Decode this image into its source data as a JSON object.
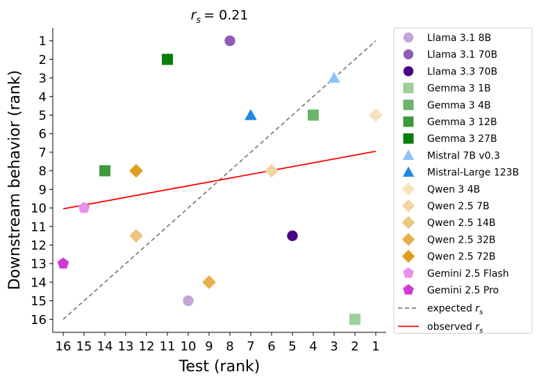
{
  "chart_data": {
    "type": "scatter",
    "title_var": "r",
    "title_sub": "s",
    "title_value": "= 0.21",
    "xlabel": "Test (rank)",
    "ylabel": "Downstream behavior (rank)",
    "xlim": [
      16.5,
      0.5
    ],
    "ylim": [
      16.7,
      0.3
    ],
    "x_ticks": [
      16,
      15,
      14,
      13,
      12,
      11,
      10,
      9,
      8,
      7,
      6,
      5,
      4,
      3,
      2,
      1
    ],
    "y_ticks": [
      1,
      2,
      3,
      4,
      5,
      6,
      7,
      8,
      9,
      10,
      11,
      12,
      13,
      14,
      15,
      16
    ],
    "series": [
      {
        "name": "Llama 3.1 8B",
        "x": 10,
        "y": 15,
        "marker": "circle",
        "color": "#c3a6d8"
      },
      {
        "name": "Llama 3.1 70B",
        "x": 8,
        "y": 1,
        "marker": "circle",
        "color": "#8e5cb8"
      },
      {
        "name": "Llama 3.3 70B",
        "x": 5,
        "y": 11.5,
        "marker": "circle",
        "color": "#4b0082"
      },
      {
        "name": "Gemma 3 1B",
        "x": 2,
        "y": 16,
        "marker": "square",
        "color": "#9dd09d"
      },
      {
        "name": "Gemma 3 4B",
        "x": 4,
        "y": 5,
        "marker": "square",
        "color": "#6ab56a"
      },
      {
        "name": "Gemma 3 12B",
        "x": 14,
        "y": 8,
        "marker": "square",
        "color": "#3c9a3c"
      },
      {
        "name": "Gemma 3 27B",
        "x": 11,
        "y": 2,
        "marker": "square",
        "color": "#0a7d0a"
      },
      {
        "name": "Mistral 7B v0.3",
        "x": 3,
        "y": 3,
        "marker": "triangle",
        "color": "#8cc4f8"
      },
      {
        "name": "Mistral-Large 123B",
        "x": 7,
        "y": 5,
        "marker": "triangle",
        "color": "#1e88e5"
      },
      {
        "name": "Qwen 3 4B",
        "x": 1,
        "y": 5,
        "marker": "diamond",
        "color": "#f8e2bc"
      },
      {
        "name": "Qwen 2.5 7B",
        "x": 6,
        "y": 8,
        "marker": "diamond",
        "color": "#f3d5a0"
      },
      {
        "name": "Qwen 2.5 14B",
        "x": 12.5,
        "y": 11.5,
        "marker": "diamond",
        "color": "#ecc77c"
      },
      {
        "name": "Qwen 2.5 32B",
        "x": 9,
        "y": 14,
        "marker": "diamond",
        "color": "#e8b04c"
      },
      {
        "name": "Qwen 2.5 72B",
        "x": 12.5,
        "y": 8,
        "marker": "diamond",
        "color": "#e29c20"
      },
      {
        "name": "Gemini 2.5 Flash",
        "x": 15,
        "y": 10,
        "marker": "pentagon",
        "color": "#ea8fea"
      },
      {
        "name": "Gemini 2.5 Pro",
        "x": 16,
        "y": 13,
        "marker": "pentagon",
        "color": "#d23ad6"
      }
    ],
    "lines": [
      {
        "name": "expected",
        "var": "r",
        "sub": "s",
        "style": "dashed",
        "color": "#808080",
        "x": [
          16,
          1
        ],
        "y": [
          16,
          1
        ]
      },
      {
        "name": "observed",
        "var": "r",
        "sub": "s",
        "style": "solid",
        "color": "#ff0000",
        "x": [
          16,
          1
        ],
        "y": [
          10.05,
          6.95
        ]
      }
    ],
    "legend": "outside-right",
    "grid": false
  }
}
